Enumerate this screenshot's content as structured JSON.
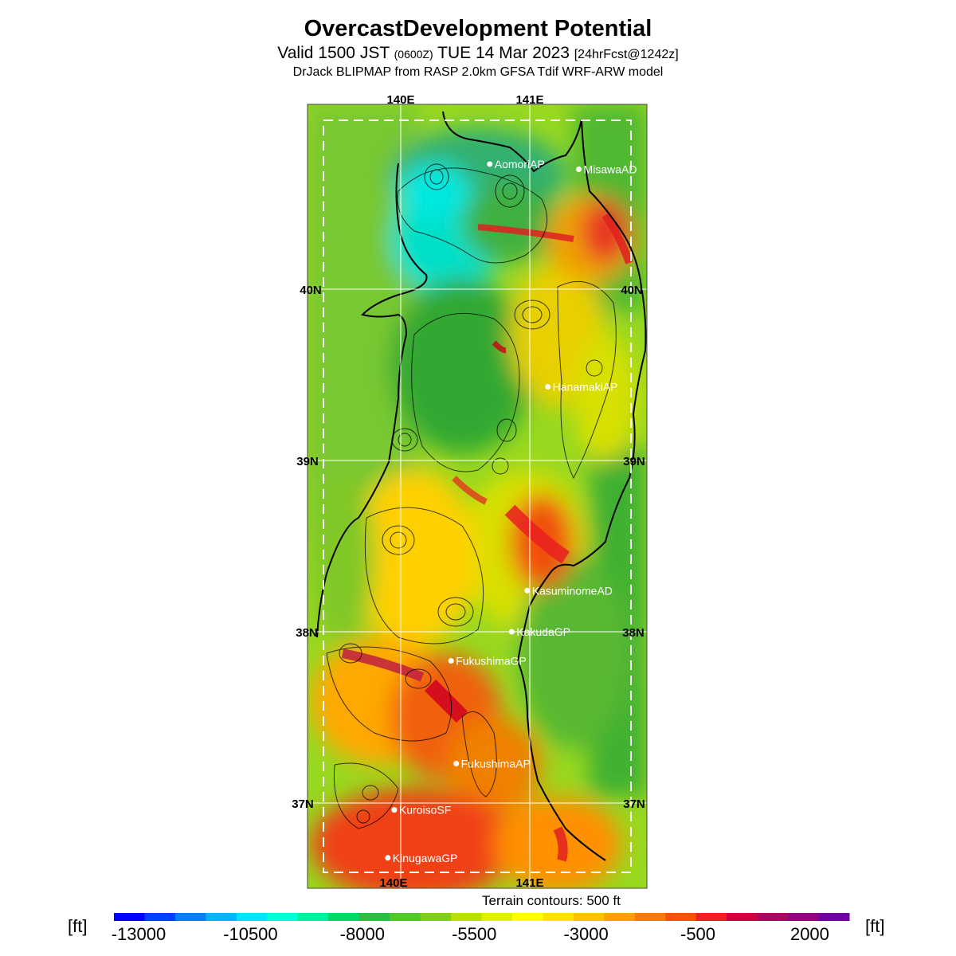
{
  "title": "OvercastDevelopment Potential",
  "subtitle": {
    "valid": "Valid 1500 JST",
    "utc": "(0600Z)",
    "date": "TUE 14 Mar 2023",
    "forecast": "[24hrFcst@1242z]"
  },
  "source": "DrJack BLIPMAP from RASP 2.0km GFSA Tdif WRF-ARW model",
  "grid_labels": {
    "lon_top": [
      "140E",
      "141E"
    ],
    "lon_bottom": [
      "140E",
      "141E"
    ],
    "lat_left": [
      "40N",
      "39N",
      "38N",
      "37N"
    ],
    "lat_right": [
      "40N",
      "39N",
      "38N",
      "37N"
    ]
  },
  "stations": [
    {
      "name": "AomoriAP",
      "lon": 140.69,
      "lat": 40.73
    },
    {
      "name": "MisawaAD",
      "lon": 141.38,
      "lat": 40.7
    },
    {
      "name": "HanamakiAP",
      "lon": 141.14,
      "lat": 39.43
    },
    {
      "name": "KasuminomeAD",
      "lon": 140.98,
      "lat": 38.24
    },
    {
      "name": "KakudaGP",
      "lon": 140.86,
      "lat": 38.0
    },
    {
      "name": "FukushimaGP",
      "lon": 140.39,
      "lat": 37.83
    },
    {
      "name": "FukushimaAP",
      "lon": 140.43,
      "lat": 37.23
    },
    {
      "name": "KuroisoSF",
      "lon": 139.95,
      "lat": 36.96
    },
    {
      "name": "KinugawaGP",
      "lon": 139.9,
      "lat": 36.68
    }
  ],
  "terrain_note": "Terrain contours: 500 ft",
  "colorbar": {
    "unit": "[ft]",
    "tick_labels": [
      "-13000",
      "-10500",
      "-8000",
      "-5500",
      "-3000",
      "-500",
      "2000"
    ],
    "colors": [
      "#0000ff",
      "#0040ff",
      "#0080ff",
      "#00b4ff",
      "#00e4ff",
      "#00ffd8",
      "#00f0a0",
      "#00d868",
      "#28c040",
      "#50c828",
      "#80d010",
      "#b8e000",
      "#e0f000",
      "#ffff00",
      "#ffe000",
      "#ffc000",
      "#ffa000",
      "#ff7800",
      "#ff5000",
      "#f02020",
      "#d00040",
      "#b00060",
      "#900080",
      "#7000a0"
    ]
  },
  "colors": {
    "station_dot": "#ffffff",
    "grid_line": "#ffffff"
  }
}
